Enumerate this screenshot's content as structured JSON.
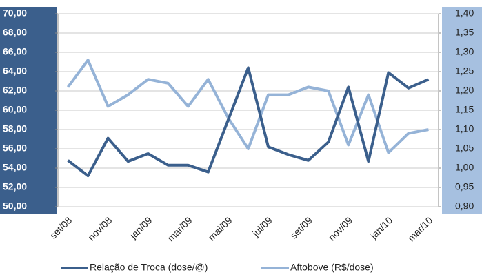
{
  "chart_data": {
    "type": "line",
    "categories": [
      "set/08",
      null,
      "nov/08",
      null,
      "jan/09",
      null,
      "mar/09",
      null,
      "mai/09",
      null,
      "jul/09",
      null,
      "set/09",
      null,
      "nov/09",
      null,
      "jan/10",
      null,
      "mar/10"
    ],
    "series": [
      {
        "name": "Relação de Troca (dose/@)",
        "color": "#3b5f8c",
        "axis": "y",
        "values": [
          54.8,
          53.2,
          57.1,
          54.7,
          55.5,
          54.3,
          54.3,
          53.6,
          59.0,
          64.4,
          56.2,
          55.4,
          54.8,
          56.7,
          62.4,
          54.7,
          63.9,
          62.3,
          63.2
        ]
      },
      {
        "name": "Aftobove (R$/dose)",
        "color": "#95b3d7",
        "axis": "y2",
        "values": [
          1.21,
          1.28,
          1.16,
          1.19,
          1.23,
          1.22,
          1.16,
          1.23,
          1.13,
          1.05,
          1.19,
          1.19,
          1.21,
          1.2,
          1.06,
          1.19,
          1.04,
          1.09,
          1.1
        ]
      }
    ],
    "ylim": [
      50,
      70
    ],
    "yticks": [
      {
        "value": 50,
        "label": "50,00"
      },
      {
        "value": 52,
        "label": "52,00"
      },
      {
        "value": 54,
        "label": "54,00"
      },
      {
        "value": 56,
        "label": "56,00"
      },
      {
        "value": 58,
        "label": "58,00"
      },
      {
        "value": 60,
        "label": "60,00"
      },
      {
        "value": 62,
        "label": "62,00"
      },
      {
        "value": 64,
        "label": "64,00"
      },
      {
        "value": 66,
        "label": "66,00"
      },
      {
        "value": 68,
        "label": "68,00"
      },
      {
        "value": 70,
        "label": "70,00"
      }
    ],
    "y2lim": [
      0.9,
      1.4
    ],
    "y2ticks": [
      {
        "value": 0.9,
        "label": "0,90"
      },
      {
        "value": 0.95,
        "label": "0,95"
      },
      {
        "value": 1.0,
        "label": "1,00"
      },
      {
        "value": 1.05,
        "label": "1,05"
      },
      {
        "value": 1.1,
        "label": "1,10"
      },
      {
        "value": 1.15,
        "label": "1,15"
      },
      {
        "value": 1.2,
        "label": "1,20"
      },
      {
        "value": 1.25,
        "label": "1,25"
      },
      {
        "value": 1.3,
        "label": "1,30"
      },
      {
        "value": 1.35,
        "label": "1,35"
      },
      {
        "value": 1.4,
        "label": "1,40"
      }
    ],
    "grid": true,
    "legend": "bottom"
  }
}
